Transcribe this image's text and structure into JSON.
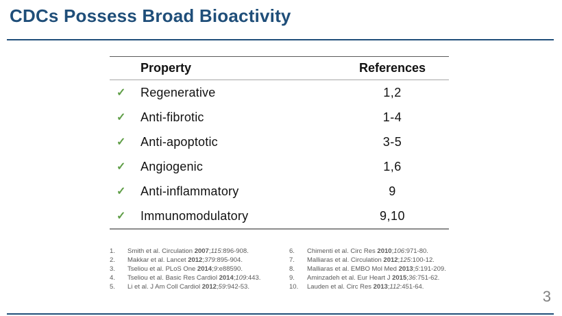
{
  "slide": {
    "title": "CDCs Possess Broad Bioactivity",
    "page_number": "3"
  },
  "colors": {
    "accent_navy": "#1f4e79",
    "check_green": "#5f9e47",
    "table_text": "#111111",
    "footnote_gray": "#595959",
    "page_number_gray": "#808080"
  },
  "table": {
    "check_icon": "✓",
    "headers": {
      "property": "Property",
      "references": "References"
    },
    "rows": [
      {
        "property": "Regenerative",
        "references": "1,2"
      },
      {
        "property": "Anti-fibrotic",
        "references": "1-4"
      },
      {
        "property": "Anti-apoptotic",
        "references": "3-5"
      },
      {
        "property": "Angiogenic",
        "references": "1,6"
      },
      {
        "property": "Anti-inflammatory",
        "references": "9"
      },
      {
        "property": "Immunomodulatory",
        "references": "9,10"
      }
    ]
  },
  "footnotes": {
    "left": [
      {
        "num": "1.",
        "pre": "Smith et al. Circulation ",
        "year": "2007",
        "mid": ";",
        "vol": "115",
        "tail": ":896-908."
      },
      {
        "num": "2.",
        "pre": "Makkar et al. Lancet ",
        "year": "2012",
        "mid": ";",
        "vol": "379",
        "tail": ":895-904."
      },
      {
        "num": "3.",
        "pre": "Tseliou et al. PLoS One ",
        "year": "2014",
        "mid": ";",
        "vol": "9",
        "tail": ":e88590."
      },
      {
        "num": "4.",
        "pre": "Tseliou et al. Basic Res Cardiol ",
        "year": "2014",
        "mid": ";",
        "vol": "109",
        "tail": ":443."
      },
      {
        "num": "5.",
        "pre": "Li et al. J Am Coll Cardiol ",
        "year": "2012",
        "mid": ";",
        "vol": "59",
        "tail": ":942-53."
      }
    ],
    "right": [
      {
        "num": "6.",
        "pre": "Chimenti et al. Circ Res ",
        "year": "2010",
        "mid": ";",
        "vol": "106",
        "tail": ":971-80."
      },
      {
        "num": "7.",
        "pre": "Malliaras et al. Circulation ",
        "year": "2012",
        "mid": ";",
        "vol": "125",
        "tail": ":100-12."
      },
      {
        "num": "8.",
        "pre": "Malliaras et al. EMBO Mol Med ",
        "year": "2013",
        "mid": ";",
        "vol": "5",
        "tail": ":191-209."
      },
      {
        "num": "9.",
        "pre": "Aminzadeh et al. Eur Heart J ",
        "year": "2015",
        "mid": ";",
        "vol": "36",
        "tail": ":751-62."
      },
      {
        "num": "10.",
        "pre": "Lauden et al. Circ Res ",
        "year": "2013",
        "mid": ";",
        "vol": "112",
        "tail": ":451-64."
      }
    ]
  }
}
